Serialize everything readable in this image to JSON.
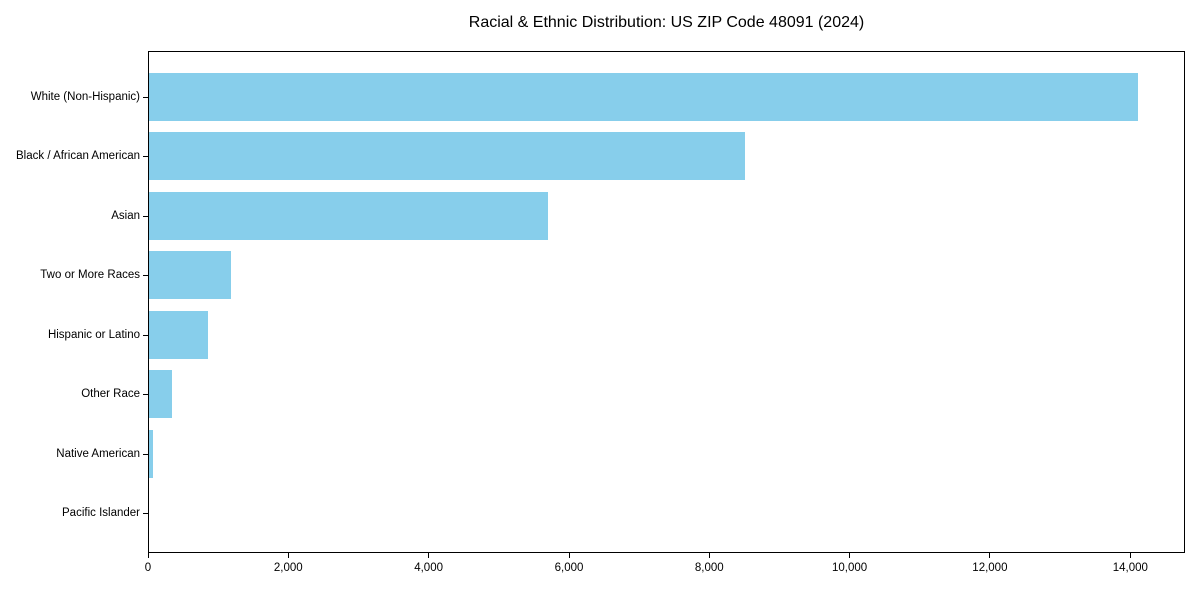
{
  "chart_data": {
    "type": "bar",
    "orientation": "horizontal",
    "title": "Racial & Ethnic Distribution: US ZIP Code 48091 (2024)",
    "categories": [
      "White (Non-Hispanic)",
      "Black / African American",
      "Asian",
      "Two or More Races",
      "Hispanic or Latino",
      "Other Race",
      "Native American",
      "Pacific Islander"
    ],
    "values": [
      14100,
      8500,
      5680,
      1170,
      840,
      320,
      55,
      0
    ],
    "xlabel": "",
    "ylabel": "",
    "xlim": [
      0,
      14780
    ],
    "xticks": [
      0,
      2000,
      4000,
      6000,
      8000,
      10000,
      12000,
      14000
    ],
    "xtick_labels": [
      "0",
      "2,000",
      "4,000",
      "6,000",
      "8,000",
      "10,000",
      "12,000",
      "14,000"
    ],
    "bar_color": "#87CEEB",
    "axis_color": "#000000",
    "text_color": "#000000",
    "grid": false,
    "legend_position": "none"
  }
}
